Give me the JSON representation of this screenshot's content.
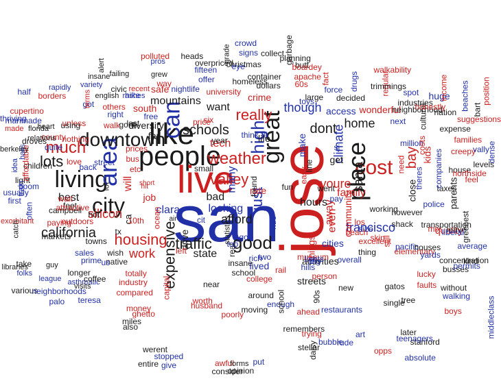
{
  "colors": {
    "red": "#cc1f1f",
    "blue": "#2230a8",
    "black": "#1a1a1a"
  },
  "words": [
    {
      "text": "san",
      "color": "blue"
    },
    {
      "text": "jose",
      "color": "red"
    },
    {
      "text": "people",
      "color": "black"
    },
    {
      "text": "like",
      "color": "black"
    },
    {
      "text": "live",
      "color": "red"
    },
    {
      "text": "living",
      "color": "black"
    },
    {
      "text": "city",
      "color": "black"
    },
    {
      "text": "area",
      "color": "blue"
    },
    {
      "text": "cost",
      "color": "red"
    },
    {
      "text": "place",
      "color": "black"
    },
    {
      "text": "great",
      "color": "black"
    },
    {
      "text": "can",
      "color": "blue"
    },
    {
      "text": "downtown",
      "color": "black"
    },
    {
      "text": "good",
      "color": "black"
    },
    {
      "text": "weather",
      "color": "red"
    },
    {
      "text": "housing",
      "color": "red"
    },
    {
      "text": "much",
      "color": "red"
    },
    {
      "text": "valley",
      "color": "red"
    },
    {
      "text": "schools",
      "color": "black"
    },
    {
      "text": "traffic",
      "color": "black"
    },
    {
      "text": "lots",
      "color": "black"
    },
    {
      "text": "really",
      "color": "red"
    },
    {
      "text": "high",
      "color": "blue"
    },
    {
      "text": "expensive",
      "color": "black"
    },
    {
      "text": "california",
      "color": "black"
    },
    {
      "text": "francisco",
      "color": "blue"
    },
    {
      "text": "many",
      "color": "blue"
    },
    {
      "text": "hours",
      "color": "black"
    },
    {
      "text": "silicon",
      "color": "red"
    },
    {
      "text": "afford",
      "color": "black"
    },
    {
      "text": "youre",
      "color": "red"
    },
    {
      "text": "looking",
      "color": "blue"
    },
    {
      "text": "just",
      "color": "blue"
    },
    {
      "text": "dont",
      "color": "black"
    },
    {
      "text": "bay",
      "color": "red"
    },
    {
      "text": "family",
      "color": "red"
    },
    {
      "text": "santa",
      "color": "black"
    },
    {
      "text": "work",
      "color": "red"
    },
    {
      "text": "home",
      "color": "black"
    },
    {
      "text": "even",
      "color": "red"
    },
    {
      "text": "things",
      "color": "red"
    },
    {
      "text": "tech",
      "color": "red"
    },
    {
      "text": "will",
      "color": "red"
    },
    {
      "text": "bad",
      "color": "black"
    },
    {
      "text": "state",
      "color": "black"
    },
    {
      "text": "drive",
      "color": "black"
    },
    {
      "text": "away",
      "color": "red"
    },
    {
      "text": "though",
      "color": "blue"
    },
    {
      "text": "climate",
      "color": "blue"
    },
    {
      "text": "job",
      "color": "red"
    },
    {
      "text": "clara",
      "color": "blue"
    },
    {
      "text": "lived",
      "color": "blue"
    },
    {
      "text": "activities",
      "color": "black"
    },
    {
      "text": "streets",
      "color": "black"
    },
    {
      "text": "community",
      "color": "red"
    },
    {
      "text": "close",
      "color": "black"
    },
    {
      "text": "make",
      "color": "blue"
    },
    {
      "text": "best",
      "color": "black"
    },
    {
      "text": "diversity",
      "color": "black"
    },
    {
      "text": "mountains",
      "color": "black"
    },
    {
      "text": "want",
      "color": "black"
    },
    {
      "text": "life",
      "color": "black"
    },
    {
      "text": "far",
      "color": "black"
    },
    {
      "text": "cities",
      "color": "blue"
    },
    {
      "text": "small",
      "color": "black"
    },
    {
      "text": "ca",
      "color": "black"
    },
    {
      "text": "get",
      "color": "black"
    },
    {
      "text": "year",
      "color": "black"
    },
    {
      "text": "kids",
      "color": "red"
    },
    {
      "text": "restaurants",
      "color": "blue"
    },
    {
      "text": "museum",
      "color": "red"
    },
    {
      "text": "elementary",
      "color": "red"
    },
    {
      "text": "beach",
      "color": "red"
    },
    {
      "text": "etc",
      "color": "red"
    },
    {
      "text": "prices",
      "color": "red"
    },
    {
      "text": "crime",
      "color": "red"
    },
    {
      "text": "access",
      "color": "blue"
    },
    {
      "text": "fact",
      "color": "red"
    },
    {
      "text": "wonderful",
      "color": "red"
    },
    {
      "text": "thing",
      "color": "black"
    },
    {
      "text": "overall",
      "color": "blue"
    },
    {
      "text": "near",
      "color": "black"
    },
    {
      "text": "still",
      "color": "red"
    },
    {
      "text": "quality",
      "color": "red"
    },
    {
      "text": "transportation",
      "color": "black"
    },
    {
      "text": "taxes",
      "color": "black"
    },
    {
      "text": "police",
      "color": "blue"
    },
    {
      "text": "theres",
      "color": "blue"
    },
    {
      "text": "cultural",
      "color": "black"
    },
    {
      "text": "million",
      "color": "blue"
    },
    {
      "text": "next",
      "color": "blue"
    },
    {
      "text": "parents",
      "color": "black"
    },
    {
      "text": "huge",
      "color": "blue"
    },
    {
      "text": "neighborhood",
      "color": "black"
    },
    {
      "text": "towns",
      "color": "black"
    },
    {
      "text": "excellent",
      "color": "red"
    },
    {
      "text": "pacific",
      "color": "blue"
    },
    {
      "text": "real",
      "color": "black"
    },
    {
      "text": "line",
      "color": "black"
    },
    {
      "text": "sj",
      "color": "blue"
    },
    {
      "text": "need",
      "color": "red"
    },
    {
      "text": "left",
      "color": "red"
    },
    {
      "text": "found",
      "color": "black"
    },
    {
      "text": "bus",
      "color": "red"
    },
    {
      "text": "house",
      "color": "black"
    },
    {
      "text": "leave",
      "color": "black"
    },
    {
      "text": "kind",
      "color": "black"
    },
    {
      "text": "mix",
      "color": "red"
    },
    {
      "text": "without",
      "color": "black"
    },
    {
      "text": "walking",
      "color": "blue"
    },
    {
      "text": "industry",
      "color": "red"
    },
    {
      "text": "compared",
      "color": "red"
    },
    {
      "text": "worth",
      "color": "red"
    },
    {
      "text": "husband",
      "color": "red"
    },
    {
      "text": "person",
      "color": "red"
    },
    {
      "text": "college",
      "color": "red"
    },
    {
      "text": "school",
      "color": "black"
    },
    {
      "text": "insane",
      "color": "black"
    },
    {
      "text": "went",
      "color": "black"
    },
    {
      "text": "easy",
      "color": "red"
    },
    {
      "text": "fun",
      "color": "black"
    },
    {
      "text": "air",
      "color": "black"
    },
    {
      "text": "tx",
      "color": "black"
    },
    {
      "text": "10th",
      "color": "red"
    },
    {
      "text": "ocean",
      "color": "red"
    },
    {
      "text": "capital",
      "color": "red"
    },
    {
      "text": "money",
      "color": "red"
    },
    {
      "text": "ghetto",
      "color": "red"
    },
    {
      "text": "totally",
      "color": "red"
    },
    {
      "text": "native",
      "color": "black"
    },
    {
      "text": "lot",
      "color": "black"
    },
    {
      "text": "back",
      "color": "blue"
    },
    {
      "text": "us",
      "color": "blue"
    },
    {
      "text": "street",
      "color": "blue"
    },
    {
      "text": "short",
      "color": "red"
    },
    {
      "text": "hit",
      "color": "red"
    },
    {
      "text": "love",
      "color": "red"
    },
    {
      "text": "light",
      "color": "black"
    },
    {
      "text": "boom",
      "color": "blue"
    },
    {
      "text": "children",
      "color": "black"
    },
    {
      "text": "wait",
      "color": "red"
    },
    {
      "text": "affordable",
      "color": "red"
    },
    {
      "text": "usually",
      "color": "blue"
    },
    {
      "text": "train",
      "color": "blue"
    },
    {
      "text": "first",
      "color": "blue"
    },
    {
      "text": "often",
      "color": "blue"
    },
    {
      "text": "exorbitant",
      "color": "red"
    },
    {
      "text": "catch",
      "color": "black"
    },
    {
      "text": "campbell",
      "color": "black"
    },
    {
      "text": "markets",
      "color": "black"
    },
    {
      "text": "outdoors",
      "color": "red"
    },
    {
      "text": "paying",
      "color": "red"
    },
    {
      "text": "feet",
      "color": "black"
    },
    {
      "text": "hot",
      "color": "black"
    },
    {
      "text": "attractive",
      "color": "red"
    },
    {
      "text": "take",
      "color": "black"
    },
    {
      "text": "guy",
      "color": "black"
    },
    {
      "text": "folks",
      "color": "blue"
    },
    {
      "text": "libraries",
      "color": "black"
    },
    {
      "text": "league",
      "color": "blue"
    },
    {
      "text": "various",
      "color": "black"
    },
    {
      "text": "visits",
      "color": "black"
    },
    {
      "text": "palo",
      "color": "blue"
    },
    {
      "text": "neighborhoods",
      "color": "blue"
    },
    {
      "text": "asthmatic",
      "color": "blue"
    },
    {
      "text": "teresa",
      "color": "blue"
    },
    {
      "text": "coffee",
      "color": "black"
    },
    {
      "text": "longer",
      "color": "black"
    },
    {
      "text": "prime",
      "color": "blue"
    },
    {
      "text": "sales",
      "color": "blue"
    },
    {
      "text": "wish",
      "color": "black"
    },
    {
      "text": "miles",
      "color": "black"
    },
    {
      "text": "also",
      "color": "black"
    },
    {
      "text": "entire",
      "color": "black"
    },
    {
      "text": "werent",
      "color": "black"
    },
    {
      "text": "stopped",
      "color": "blue"
    },
    {
      "text": "give",
      "color": "blue"
    },
    {
      "text": "put",
      "color": "blue"
    },
    {
      "text": "daisy",
      "color": "black"
    },
    {
      "text": "stellar",
      "color": "black"
    },
    {
      "text": "remembers",
      "color": "black"
    },
    {
      "text": "trying",
      "color": "red"
    },
    {
      "text": "bubble",
      "color": "blue"
    },
    {
      "text": "ahead",
      "color": "red"
    },
    {
      "text": "poorly",
      "color": "red"
    },
    {
      "text": "awful",
      "color": "red"
    },
    {
      "text": "consider",
      "color": "black"
    },
    {
      "text": "opinion",
      "color": "black"
    },
    {
      "text": "forms",
      "color": "black"
    },
    {
      "text": "rude",
      "color": "blue"
    },
    {
      "text": "art",
      "color": "blue"
    },
    {
      "text": "opps",
      "color": "red"
    },
    {
      "text": "absolute",
      "color": "blue"
    },
    {
      "text": "stanford",
      "color": "black"
    },
    {
      "text": "later",
      "color": "black"
    },
    {
      "text": "teenagers",
      "color": "blue"
    },
    {
      "text": "busses",
      "color": "black"
    },
    {
      "text": "boys",
      "color": "red"
    },
    {
      "text": "middleclass",
      "color": "blue"
    },
    {
      "text": "concentration",
      "color": "black"
    },
    {
      "text": "greenest",
      "color": "black"
    },
    {
      "text": "faults",
      "color": "red"
    },
    {
      "text": "yards",
      "color": "blue"
    },
    {
      "text": "lucky",
      "color": "red"
    },
    {
      "text": "liberal",
      "color": "blue"
    },
    {
      "text": "houses",
      "color": "black"
    },
    {
      "text": "average",
      "color": "blue"
    },
    {
      "text": "permits",
      "color": "blue"
    },
    {
      "text": "skin",
      "color": "red"
    },
    {
      "text": "size",
      "color": "blue"
    },
    {
      "text": "lights",
      "color": "blue"
    },
    {
      "text": "hills",
      "color": "blue"
    },
    {
      "text": "new",
      "color": "black"
    },
    {
      "text": "tree",
      "color": "black"
    },
    {
      "text": "single",
      "color": "black"
    },
    {
      "text": "gatos",
      "color": "black"
    },
    {
      "text": "however",
      "color": "black"
    },
    {
      "text": "shack",
      "color": "black"
    },
    {
      "text": "working",
      "color": "black"
    },
    {
      "text": "pay",
      "color": "blue"
    },
    {
      "text": "los",
      "color": "red"
    },
    {
      "text": "90s",
      "color": "black"
    },
    {
      "text": "big",
      "color": "blue"
    },
    {
      "text": "around",
      "color": "black"
    },
    {
      "text": "moving",
      "color": "black"
    },
    {
      "text": "enough",
      "color": "blue"
    },
    {
      "text": "school",
      "color": "black"
    },
    {
      "text": "insane",
      "color": "black"
    },
    {
      "text": "alert",
      "color": "black"
    },
    {
      "text": "failing",
      "color": "black"
    },
    {
      "text": "civic",
      "color": "black"
    },
    {
      "text": "hike",
      "color": "blue"
    },
    {
      "text": "rashes",
      "color": "blue"
    },
    {
      "text": "variety",
      "color": "blue"
    },
    {
      "text": "english",
      "color": "black"
    },
    {
      "text": "recent",
      "color": "red"
    },
    {
      "text": "others",
      "color": "red"
    },
    {
      "text": "right",
      "color": "blue"
    },
    {
      "text": "walk",
      "color": "red"
    },
    {
      "text": "gone",
      "color": "black"
    },
    {
      "text": "last",
      "color": "black"
    },
    {
      "text": "got",
      "color": "blue"
    },
    {
      "text": "unless",
      "color": "red"
    },
    {
      "text": "using",
      "color": "black"
    },
    {
      "text": "nothing",
      "color": "red"
    },
    {
      "text": "county",
      "color": "red"
    },
    {
      "text": "quite",
      "color": "blue"
    },
    {
      "text": "half",
      "color": "blue"
    },
    {
      "text": "borders",
      "color": "red"
    },
    {
      "text": "rapidly",
      "color": "blue"
    },
    {
      "text": "terms",
      "color": "red"
    },
    {
      "text": "cupertino",
      "color": "red"
    },
    {
      "text": "manmade",
      "color": "blue"
    },
    {
      "text": "thriving",
      "color": "blue"
    },
    {
      "text": "made",
      "color": "red"
    },
    {
      "text": "heart",
      "color": "black"
    },
    {
      "text": "relations",
      "color": "black"
    },
    {
      "text": "florida",
      "color": "black"
    },
    {
      "text": "droves",
      "color": "black"
    },
    {
      "text": "halls",
      "color": "blue"
    },
    {
      "text": "berkeley",
      "color": "black"
    },
    {
      "text": "idea",
      "color": "blue"
    },
    {
      "text": "grew",
      "color": "black"
    },
    {
      "text": "pros",
      "color": "blue"
    },
    {
      "text": "polluted",
      "color": "red"
    },
    {
      "text": "way",
      "color": "red"
    },
    {
      "text": "safe",
      "color": "red"
    },
    {
      "text": "south",
      "color": "red"
    },
    {
      "text": "free",
      "color": "blue"
    },
    {
      "text": "price",
      "color": "red"
    },
    {
      "text": "six",
      "color": "red"
    },
    {
      "text": "nightlife",
      "color": "blue"
    },
    {
      "text": "university",
      "color": "red"
    },
    {
      "text": "offer",
      "color": "blue"
    },
    {
      "text": "fifteen",
      "color": "blue"
    },
    {
      "text": "heads",
      "color": "black"
    },
    {
      "text": "overpriced",
      "color": "black"
    },
    {
      "text": "christmas",
      "color": "black"
    },
    {
      "text": "grade",
      "color": "black"
    },
    {
      "text": "crowd",
      "color": "blue"
    },
    {
      "text": "signs",
      "color": "blue"
    },
    {
      "text": "eye",
      "color": "blue"
    },
    {
      "text": "container",
      "color": "black"
    },
    {
      "text": "homeless",
      "color": "black"
    },
    {
      "text": "collect",
      "color": "black"
    },
    {
      "text": "dollars",
      "color": "black"
    },
    {
      "text": "garbage",
      "color": "black"
    },
    {
      "text": "planning",
      "color": "black"
    },
    {
      "text": "butt",
      "color": "black"
    },
    {
      "text": "apache",
      "color": "red"
    },
    {
      "text": "boardey",
      "color": "red"
    },
    {
      "text": "60s",
      "color": "red"
    },
    {
      "text": "toys",
      "color": "blue"
    },
    {
      "text": "large",
      "color": "black"
    },
    {
      "text": "force",
      "color": "blue"
    },
    {
      "text": "decided",
      "color": "black"
    },
    {
      "text": "drugs",
      "color": "blue"
    },
    {
      "text": "regular",
      "color": "red"
    },
    {
      "text": "walkability",
      "color": "red"
    },
    {
      "text": "trimmings",
      "color": "black"
    },
    {
      "text": "spot",
      "color": "blue"
    },
    {
      "text": "industries",
      "color": "black"
    },
    {
      "text": "honestly",
      "color": "red"
    },
    {
      "text": "nation",
      "color": "black"
    },
    {
      "text": "expense",
      "color": "black"
    },
    {
      "text": "families",
      "color": "red"
    },
    {
      "text": "creepy",
      "color": "red"
    },
    {
      "text": "levels",
      "color": "black"
    },
    {
      "text": "northside",
      "color": "red"
    },
    {
      "text": "suggestions",
      "color": "red"
    },
    {
      "text": "position",
      "color": "red"
    },
    {
      "text": "dense",
      "color": "blue"
    },
    {
      "text": "beaches",
      "color": "blue"
    },
    {
      "text": "income",
      "color": "red"
    },
    {
      "text": "costs",
      "color": "red"
    },
    {
      "text": "companies",
      "color": "blue"
    },
    {
      "text": "feel",
      "color": "red"
    },
    {
      "text": "rate",
      "color": "red"
    },
    {
      "text": "ride",
      "color": "blue"
    },
    {
      "text": "cit",
      "color": "blue"
    },
    {
      "text": "rich",
      "color": "blue"
    },
    {
      "text": "rail",
      "color": "red"
    },
    {
      "text": "top",
      "color": "blue"
    },
    {
      "text": "go",
      "color": "blue"
    },
    {
      "text": "two",
      "color": "blue"
    },
    {
      "text": "think",
      "color": "blue"
    },
    {
      "text": "fit",
      "color": "blue"
    },
    {
      "text": "vally",
      "color": "blue"
    },
    {
      "text": "bart",
      "color": "black"
    },
    {
      "text": "statistics",
      "color": "black"
    }
  ]
}
